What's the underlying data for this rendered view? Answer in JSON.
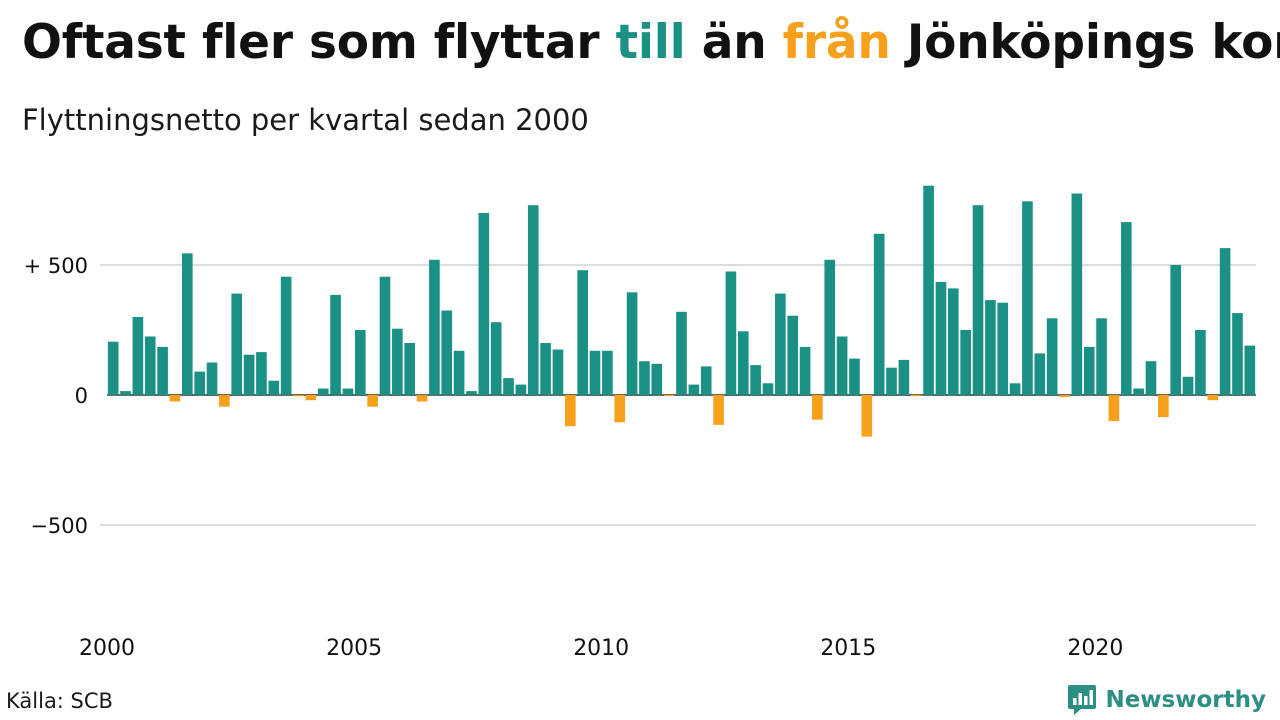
{
  "title": {
    "part1": "Oftast fler som flyttar ",
    "part2": "till",
    "part3": " än ",
    "part4": "från",
    "part5": " Jönköpings kommun"
  },
  "subtitle": "Flyttningsnetto per kvartal sedan 2000",
  "source": "Källa: SCB",
  "brand": {
    "name": "Newsworthy",
    "icon": "newsworthy-logo-icon"
  },
  "colors": {
    "positive": "#1a9184",
    "negative": "#f6a01c",
    "grid": "#dddddd"
  },
  "chart_data": {
    "type": "bar",
    "start_year": 2000,
    "quarters_per_year": 4,
    "ylim": [
      -850,
      820
    ],
    "ytick_labels": [
      {
        "value": 500,
        "label": "+ 500"
      },
      {
        "value": 0,
        "label": "0"
      },
      {
        "value": -500,
        "label": "−500"
      }
    ],
    "xtick_labels": [
      {
        "year": 2000,
        "label": "2000"
      },
      {
        "year": 2005,
        "label": "2005"
      },
      {
        "year": 2010,
        "label": "2010"
      },
      {
        "year": 2015,
        "label": "2015"
      },
      {
        "year": 2020,
        "label": "2020"
      }
    ],
    "values": [
      205,
      15,
      300,
      225,
      185,
      -25,
      545,
      90,
      125,
      -45,
      390,
      155,
      165,
      55,
      455,
      -5,
      -20,
      25,
      385,
      25,
      250,
      -45,
      455,
      255,
      200,
      -25,
      520,
      325,
      170,
      15,
      700,
      280,
      65,
      40,
      730,
      200,
      175,
      -120,
      480,
      170,
      170,
      -105,
      395,
      130,
      120,
      -2,
      320,
      40,
      110,
      -115,
      475,
      245,
      115,
      45,
      390,
      305,
      185,
      -95,
      520,
      225,
      140,
      -160,
      620,
      105,
      135,
      -3,
      805,
      435,
      410,
      250,
      730,
      365,
      355,
      45,
      745,
      160,
      295,
      -8,
      775,
      185,
      295,
      -100,
      665,
      25,
      130,
      -85,
      500,
      70,
      250,
      -20,
      565,
      315,
      190
    ]
  }
}
